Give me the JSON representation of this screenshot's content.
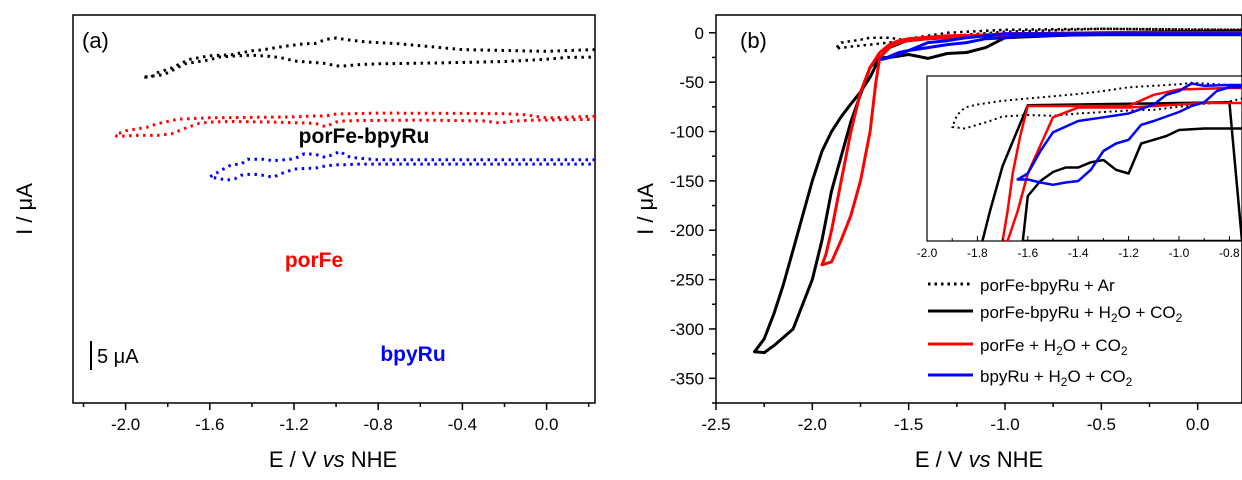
{
  "chart_data": [
    {
      "type": "line",
      "panel_label": "(a)",
      "xlabel_prefix": "E / V ",
      "xlabel_italic": "vs",
      "xlabel_suffix": " NHE",
      "ylabel": "I / μA",
      "xlim": [
        -2.25,
        0.23
      ],
      "xticks": [
        "-2.0",
        "-1.6",
        "-1.2",
        "-0.8",
        "-0.4",
        "0.0"
      ],
      "xtick_values": [
        -2.0,
        -1.6,
        -1.2,
        -0.8,
        -0.4,
        0.0
      ],
      "y_ticks_shown": false,
      "scale_bar_label": "5 μA",
      "scale_bar_value_uA": 5,
      "line_style": "dotted",
      "series": [
        {
          "name": "porFe-bpyRu",
          "color": "#000000",
          "x": [
            0.23,
            0.0,
            -0.4,
            -0.7,
            -0.85,
            -0.95,
            -1.0,
            -1.05,
            -1.1,
            -1.15,
            -1.25,
            -1.35,
            -1.4,
            -1.5,
            -1.6,
            -1.7,
            -1.78,
            -1.85,
            -1.88,
            -1.92,
            -1.82,
            -1.76,
            -1.72,
            -1.64,
            -1.6,
            -1.56,
            -1.48,
            -1.43,
            -1.38,
            -1.3,
            -1.25,
            -1.2,
            -1.15,
            -1.1,
            -1.05,
            -1.0,
            -0.97,
            -0.9,
            -0.8,
            -0.5,
            -0.2,
            0.0,
            0.1,
            0.23
          ],
          "y": [
            2.0,
            2.3,
            2.0,
            1.0,
            0.7,
            0.3,
            0.0,
            0.25,
            0.95,
            1.0,
            1.45,
            2.05,
            2.2,
            2.9,
            3.05,
            3.7,
            5.15,
            6.0,
            6.75,
            6.75,
            6.35,
            5.25,
            4.45,
            4.0,
            3.75,
            3.3,
            3.1,
            3.0,
            3.0,
            3.2,
            3.5,
            3.95,
            4.1,
            4.25,
            4.4,
            4.8,
            4.85,
            4.6,
            4.45,
            4.3,
            4.05,
            3.65,
            3.35,
            3.3
          ]
        },
        {
          "name": "porFe",
          "color": "#ff0000",
          "x": [
            0.23,
            0.0,
            -0.1,
            -0.2,
            -0.4,
            -0.8,
            -1.0,
            -1.05,
            -1.1,
            -1.2,
            -1.6,
            -1.75,
            -1.85,
            -1.9,
            -2.0,
            -2.05,
            -2.04,
            -1.95,
            -1.85,
            -1.78,
            -1.72,
            -1.65,
            -1.6,
            -1.5,
            -1.3,
            -1.1,
            -1.05,
            -1.0,
            -0.98,
            -0.9,
            -0.6,
            -0.3,
            -0.22,
            -0.15,
            -0.05,
            0.0,
            0.1,
            0.23
          ],
          "y": [
            13.5,
            13.8,
            13.25,
            13.05,
            13.0,
            12.95,
            13.1,
            13.45,
            13.45,
            13.6,
            13.75,
            14.0,
            14.8,
            15.4,
            16.0,
            16.7,
            16.95,
            16.8,
            16.8,
            16.5,
            15.6,
            14.7,
            14.5,
            14.4,
            14.5,
            14.7,
            15.3,
            14.5,
            14.35,
            14.25,
            14.15,
            14.3,
            14.65,
            14.3,
            14.15,
            14.15,
            14.05,
            14.05
          ]
        },
        {
          "name": "bpyRu",
          "color": "#0000ff",
          "x": [
            0.23,
            0.0,
            -0.4,
            -0.8,
            -0.9,
            -0.95,
            -0.98,
            -1.05,
            -1.1,
            -1.15,
            -1.2,
            -1.3,
            -1.35,
            -1.42,
            -1.45,
            -1.5,
            -1.55,
            -1.6,
            -1.52,
            -1.48,
            -1.45,
            -1.4,
            -1.35,
            -1.3,
            -1.25,
            -1.2,
            -1.15,
            -1.1,
            -1.05,
            -1.0,
            -0.95,
            -0.9,
            -0.8,
            -0.4,
            0.0,
            0.23
          ],
          "y": [
            21.0,
            21.0,
            21.0,
            21.0,
            20.7,
            20.4,
            19.55,
            20.6,
            20.05,
            19.95,
            20.85,
            21.15,
            20.9,
            20.9,
            21.7,
            21.9,
            22.9,
            23.95,
            24.5,
            24.25,
            23.65,
            23.45,
            23.65,
            24.0,
            23.25,
            22.6,
            22.5,
            22.45,
            22.05,
            21.85,
            21.85,
            21.75,
            21.75,
            21.75,
            21.75,
            21.75
          ]
        }
      ]
    },
    {
      "type": "line",
      "panel_label": "(b)",
      "xlabel_prefix": "E / V ",
      "xlabel_italic": "vs",
      "xlabel_suffix": " NHE",
      "ylabel": "I / μA",
      "xlim": [
        -2.5,
        0.23
      ],
      "ylim": [
        -375,
        18
      ],
      "xticks": [
        "-2.5",
        "-2.0",
        "-1.5",
        "-1.0",
        "-0.5",
        "0.0"
      ],
      "xtick_values": [
        -2.5,
        -2.0,
        -1.5,
        -1.0,
        -0.5,
        0.0
      ],
      "yticks": [
        "0",
        "-50",
        "-100",
        "-150",
        "-200",
        "-250",
        "-300",
        "-350"
      ],
      "ytick_values": [
        0,
        -50,
        -100,
        -150,
        -200,
        -250,
        -300,
        -350
      ],
      "legend_position": "bottom-right",
      "legend": [
        {
          "prefix": "porFe-bpyRu + Ar",
          "style": "dotted",
          "color": "#000000"
        },
        {
          "prefix": "porFe-bpyRu + H",
          "sub1": "2",
          "mid": "O + CO",
          "sub2": "2",
          "style": "solid",
          "color": "#000000"
        },
        {
          "prefix": "porFe + H",
          "sub1": "2",
          "mid": "O + CO",
          "sub2": "2",
          "style": "solid",
          "color": "#ff0000"
        },
        {
          "prefix": "bpyRu + H",
          "sub1": "2",
          "mid": "O + CO",
          "sub2": "2",
          "style": "solid",
          "color": "#0000ff"
        }
      ],
      "series": [
        {
          "name": "porFe-bpyRu + Ar",
          "style": "dotted",
          "color": "#000000",
          "x": [
            0.23,
            -0.5,
            -1.0,
            -1.3,
            -1.5,
            -1.6,
            -1.7,
            -1.8,
            -1.88,
            -1.85,
            -1.75,
            -1.7,
            -1.6,
            -1.5,
            -1.4,
            -1.3,
            -1.2,
            -1.0,
            -0.5,
            0.0,
            0.23
          ],
          "y": [
            3,
            4,
            3,
            0,
            -6,
            -10,
            -12,
            -14,
            -16,
            -10,
            -7,
            -5,
            -5,
            -8,
            -6,
            -4,
            -2,
            1,
            4,
            3,
            3
          ]
        },
        {
          "name": "porFe-bpyRu + H2O + CO2",
          "style": "solid",
          "color": "#000000",
          "x": [
            0.23,
            -0.5,
            -1.0,
            -1.2,
            -1.5,
            -1.6,
            -1.65,
            -1.7,
            -1.75,
            -1.8,
            -1.85,
            -1.9,
            -1.95,
            -2.0,
            -2.05,
            -2.1,
            -2.15,
            -2.2,
            -2.25,
            -2.28,
            -2.3,
            -2.25,
            -2.2,
            -2.1,
            -2.0,
            -1.95,
            -1.9,
            -1.8,
            -1.7,
            -1.65,
            -1.6,
            -1.5,
            -1.4,
            -1.3,
            -1.2,
            -1.1,
            -1.0,
            -0.5,
            0.23
          ],
          "y": [
            2,
            0,
            -2,
            -4,
            -7,
            -15,
            -25,
            -45,
            -60,
            -72,
            -85,
            -100,
            -120,
            -150,
            -185,
            -220,
            -255,
            -285,
            -310,
            -318,
            -323,
            -324,
            -317,
            -300,
            -250,
            -210,
            -160,
            -90,
            -35,
            -25,
            -25,
            -22,
            -26,
            -21,
            -20,
            -15,
            -5,
            -1,
            0
          ]
        },
        {
          "name": "porFe + H2O + CO2",
          "style": "solid",
          "color": "#ff0000",
          "x": [
            0.23,
            -0.5,
            -1.0,
            -1.3,
            -1.5,
            -1.55,
            -1.6,
            -1.65,
            -1.7,
            -1.75,
            -1.8,
            -1.85,
            -1.9,
            -1.93,
            -1.95,
            -1.9,
            -1.85,
            -1.8,
            -1.75,
            -1.7,
            -1.67,
            -1.65,
            -1.6,
            -1.55,
            -1.5,
            -1.4,
            -1.2,
            -1.0,
            -0.5,
            0.23
          ],
          "y": [
            0,
            -1,
            -2,
            -3,
            -6,
            -8,
            -12,
            -20,
            -35,
            -60,
            -100,
            -150,
            -200,
            -225,
            -235,
            -232,
            -210,
            -185,
            -150,
            -100,
            -50,
            -25,
            -15,
            -10,
            -8,
            -6,
            -3,
            -1,
            0,
            0
          ]
        },
        {
          "name": "bpyRu + H2O + CO2",
          "style": "solid",
          "color": "#0000ff",
          "x": [
            0.23,
            -0.5,
            -0.9,
            -1.0,
            -1.1,
            -1.2,
            -1.3,
            -1.4,
            -1.5,
            -1.55,
            -1.6,
            -1.64,
            -1.6,
            -1.55,
            -1.5,
            -1.4,
            -1.3,
            -1.2,
            -1.1,
            -1.0,
            -0.9,
            -0.5,
            0.23
          ],
          "y": [
            -2,
            -2,
            -3,
            -5,
            -6,
            -10,
            -12,
            -15,
            -18,
            -20,
            -24,
            -27,
            -25,
            -22,
            -18,
            -10,
            -8,
            -5,
            -3,
            -1,
            -1,
            -1,
            -1
          ]
        }
      ],
      "inset": {
        "xlim": [
          -2.0,
          -0.75
        ],
        "ylim": [
          -240,
          -20
        ],
        "xticks": [
          "-2.0",
          "-1.8",
          "-1.6",
          "-1.4",
          "-1.2",
          "-1.0",
          "-0.8"
        ],
        "xtick_values": [
          -2.0,
          -1.8,
          -1.6,
          -1.4,
          -1.2,
          -1.0,
          -0.8
        ],
        "series": [
          {
            "name": "porFe-bpyRu + Ar",
            "style": "dotted",
            "color": "#000000",
            "x": [
              -0.75,
              -0.8,
              -0.9,
              -0.95,
              -1.0,
              -1.1,
              -1.2,
              -1.3,
              -1.4,
              -1.5,
              -1.6,
              -1.7,
              -1.8,
              -1.85,
              -1.88,
              -1.9,
              -1.85,
              -1.8,
              -1.75,
              -1.7,
              -1.6,
              -1.5,
              -1.4,
              -1.3,
              -1.2,
              -1.1,
              -1.0,
              -0.9,
              -0.8,
              -0.75
            ],
            "y": [
              -33,
              -32,
              -30,
              -29,
              -31,
              -33,
              -35,
              -40,
              -44,
              -47,
              -50,
              -53,
              -58,
              -62,
              -72,
              -88,
              -90,
              -85,
              -80,
              -74,
              -72,
              -73,
              -70,
              -68,
              -66,
              -65,
              -61,
              -57,
              -54,
              -50
            ]
          },
          {
            "name": "porFe-bpyRu + H2O + CO2",
            "style": "solid",
            "color": "#000000",
            "x": [
              -0.75,
              -0.8,
              -0.9,
              -1.0,
              -1.05,
              -1.1,
              -1.15,
              -1.2,
              -1.25,
              -1.3,
              -1.35,
              -1.4,
              -1.45,
              -1.5,
              -1.55,
              -1.6,
              -1.62,
              -1.6,
              -1.55,
              -1.5,
              -1.45,
              -1.4,
              -1.35,
              -1.3,
              -1.25,
              -1.2,
              -1.1,
              -1.0,
              -0.9,
              -0.8,
              -0.75,
              -0.8,
              -1.0,
              -1.2,
              -1.4,
              -1.6,
              -1.7,
              -1.75,
              -1.78
            ],
            "y": [
              -90,
              -90,
              -90,
              -92,
              -100,
              -105,
              -110,
              -150,
              -145,
              -132,
              -135,
              -142,
              -142,
              -148,
              -160,
              -180,
              -240,
              -240,
              -240,
              -240,
              -240,
              -240,
              -240,
              -240,
              -240,
              -240,
              -240,
              -240,
              -240,
              -240,
              -240,
              -55,
              -56,
              -57,
              -58,
              -59,
              -140,
              -200,
              -240
            ]
          },
          {
            "name": "porFe + H2O + CO2",
            "style": "solid",
            "color": "#ff0000",
            "x": [
              -0.75,
              -0.8,
              -1.0,
              -1.1,
              -1.2,
              -1.3,
              -1.4,
              -1.5,
              -1.55,
              -1.6,
              -1.63,
              -1.66,
              -1.68,
              -1.7,
              -1.68,
              -1.64,
              -1.6,
              -1.5,
              -1.4,
              -1.3,
              -1.2,
              -1.1,
              -1.0,
              -0.9,
              -0.8,
              -0.75
            ],
            "y": [
              -36,
              -36,
              -38,
              -45,
              -60,
              -60,
              -60,
              -60,
              -60,
              -60,
              -100,
              -150,
              -200,
              -240,
              -240,
              -200,
              -150,
              -75,
              -62,
              -62,
              -62,
              -60,
              -58,
              -56,
              -56,
              -56
            ]
          },
          {
            "name": "bpyRu + H2O + CO2",
            "style": "solid",
            "color": "#0000ff",
            "x": [
              -0.75,
              -0.8,
              -0.9,
              -0.95,
              -1.0,
              -1.05,
              -1.1,
              -1.2,
              -1.3,
              -1.4,
              -1.5,
              -1.55,
              -1.6,
              -1.64,
              -1.6,
              -1.55,
              -1.5,
              -1.45,
              -1.4,
              -1.35,
              -1.3,
              -1.25,
              -1.2,
              -1.15,
              -1.1,
              -1.0,
              -0.95,
              -0.9,
              -0.85,
              -0.8,
              -0.75
            ],
            "y": [
              -32,
              -32,
              -33,
              -30,
              -40,
              -45,
              -58,
              -70,
              -75,
              -80,
              -95,
              -120,
              -150,
              -158,
              -158,
              -162,
              -165,
              -162,
              -160,
              -145,
              -120,
              -110,
              -105,
              -85,
              -80,
              -68,
              -60,
              -55,
              -40,
              -35,
              -35
            ]
          }
        ]
      }
    }
  ]
}
